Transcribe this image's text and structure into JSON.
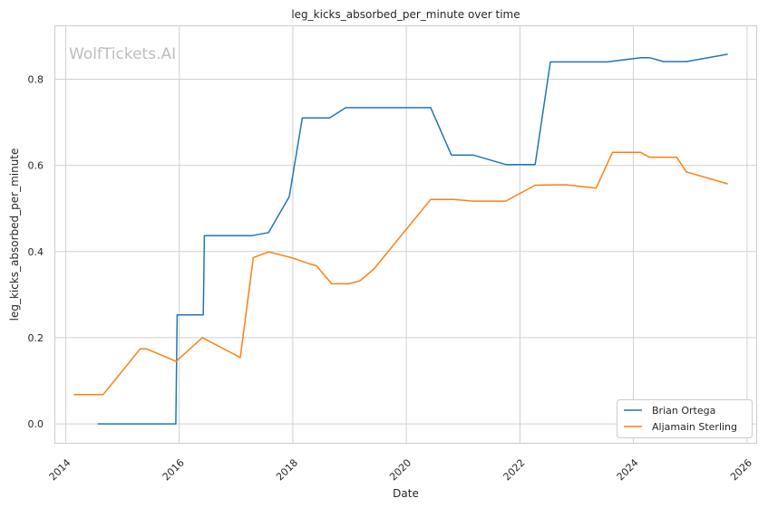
{
  "chart_data": {
    "type": "line",
    "title": "leg_kicks_absorbed_per_minute over time",
    "xlabel": "Date",
    "ylabel": "leg_kicks_absorbed_per_minute",
    "watermark": "WolfTickets.AI",
    "xlim": [
      "2013-10-20",
      "2026-03-01"
    ],
    "ylim": [
      -0.044,
      0.925
    ],
    "x_ticks": [
      "2014",
      "2016",
      "2018",
      "2020",
      "2022",
      "2024",
      "2026"
    ],
    "y_ticks": [
      "0.0",
      "0.2",
      "0.4",
      "0.6",
      "0.8"
    ],
    "grid": true,
    "legend_position": "lower-right",
    "series": [
      {
        "name": "Brian Ortega",
        "color": "#1f77b4",
        "points": [
          [
            "2014-07-26",
            0.0
          ],
          [
            "2015-12-10",
            0.0
          ],
          [
            "2015-12-19",
            0.253
          ],
          [
            "2016-06-04",
            0.253
          ],
          [
            "2016-06-11",
            0.437
          ],
          [
            "2017-04-15",
            0.437
          ],
          [
            "2017-07-29",
            0.444
          ],
          [
            "2017-12-09",
            0.527
          ],
          [
            "2018-03-03",
            0.71
          ],
          [
            "2018-08-25",
            0.71
          ],
          [
            "2018-12-08",
            0.734
          ],
          [
            "2020-06-06",
            0.734
          ],
          [
            "2020-10-17",
            0.624
          ],
          [
            "2021-03-06",
            0.624
          ],
          [
            "2021-10-02",
            0.602
          ],
          [
            "2022-04-09",
            0.602
          ],
          [
            "2022-07-16",
            0.84
          ],
          [
            "2023-07-15",
            0.84
          ],
          [
            "2024-02-17",
            0.85
          ],
          [
            "2024-04-13",
            0.85
          ],
          [
            "2024-07-13",
            0.841
          ],
          [
            "2024-12-07",
            0.841
          ],
          [
            "2025-08-30",
            0.858
          ]
        ]
      },
      {
        "name": "Aljamain Sterling",
        "color": "#ff7f0e",
        "points": [
          [
            "2014-02-22",
            0.068
          ],
          [
            "2014-08-30",
            0.068
          ],
          [
            "2015-04-25",
            0.174
          ],
          [
            "2015-06-06",
            0.174
          ],
          [
            "2015-12-12",
            0.145
          ],
          [
            "2016-05-29",
            0.2
          ],
          [
            "2017-01-28",
            0.154
          ],
          [
            "2017-04-22",
            0.386
          ],
          [
            "2017-07-29",
            0.399
          ],
          [
            "2017-12-30",
            0.385
          ],
          [
            "2018-04-14",
            0.372
          ],
          [
            "2018-06-01",
            0.367
          ],
          [
            "2018-09-08",
            0.325
          ],
          [
            "2018-12-29",
            0.325
          ],
          [
            "2019-03-09",
            0.332
          ],
          [
            "2019-06-08",
            0.36
          ],
          [
            "2020-06-06",
            0.521
          ],
          [
            "2020-10-31",
            0.521
          ],
          [
            "2021-03-06",
            0.517
          ],
          [
            "2021-10-02",
            0.517
          ],
          [
            "2022-04-09",
            0.554
          ],
          [
            "2022-10-22",
            0.555
          ],
          [
            "2023-05-06",
            0.547
          ],
          [
            "2023-08-19",
            0.63
          ],
          [
            "2024-02-17",
            0.63
          ],
          [
            "2024-04-13",
            0.619
          ],
          [
            "2024-10-05",
            0.619
          ],
          [
            "2024-12-07",
            0.585
          ],
          [
            "2025-08-30",
            0.557
          ]
        ]
      }
    ]
  }
}
